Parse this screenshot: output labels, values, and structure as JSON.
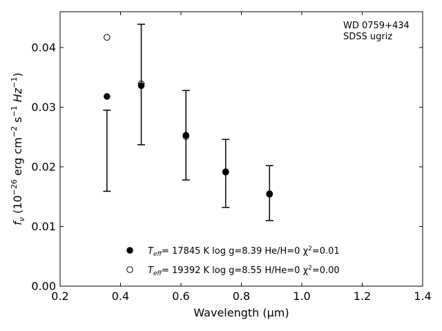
{
  "chart_data": {
    "type": "scatter",
    "annotation": [
      "WD 0759+434",
      "SDSS ugriz"
    ],
    "xlabel": "Wavelength (μm)",
    "ylabel": {
      "prefix": "f",
      "prefix_sub": "ν",
      "body": " (10",
      "exp1": "−26",
      "units": " erg cm",
      "exp2": "−2",
      "units2": " s",
      "exp3": "−1",
      "units3": " Hz",
      "exp4": "−1",
      "close": ")"
    },
    "xlim": [
      0.2,
      1.4
    ],
    "ylim": [
      0.0,
      0.046
    ],
    "xticks": [
      "0.2",
      "0.4",
      "0.6",
      "0.8",
      "1.0",
      "1.2",
      "1.4"
    ],
    "yticks": [
      "0.00",
      "0.01",
      "0.02",
      "0.03",
      "0.04"
    ],
    "grid": false,
    "legend_position": "bottom-center",
    "observed": {
      "x": [
        0.3551,
        0.4686,
        0.6166,
        0.748,
        0.8932
      ],
      "y": [
        0.0227,
        0.0338,
        0.0253,
        0.0189,
        0.0156
      ],
      "yerr_low": [
        0.0068,
        0.0101,
        0.0075,
        0.0057,
        0.0046
      ],
      "yerr_high": [
        0.0068,
        0.0101,
        0.0075,
        0.0057,
        0.0046
      ]
    },
    "series": [
      {
        "teff_label": "T",
        "teff_sub": "eff",
        "text": "= 17845 K  log g=8.39  He/H=0  χ",
        "chi_sup": "2",
        "chi_text": "=0.01",
        "marker": "filled",
        "x": [
          0.3551,
          0.4686,
          0.6166,
          0.748,
          0.8932
        ],
        "y": [
          0.0318,
          0.0336,
          0.0253,
          0.0192,
          0.0154
        ]
      },
      {
        "teff_label": "T",
        "teff_sub": "eff",
        "text": "= 19392 K  log g=8.55  H/He=0  χ",
        "chi_sup": "2",
        "chi_text": "=0.00",
        "marker": "open",
        "x": [
          0.3551,
          0.4686,
          0.6166,
          0.748,
          0.8932
        ],
        "y": [
          0.0417,
          0.0339,
          0.0251,
          0.0191,
          0.0155
        ]
      }
    ]
  }
}
